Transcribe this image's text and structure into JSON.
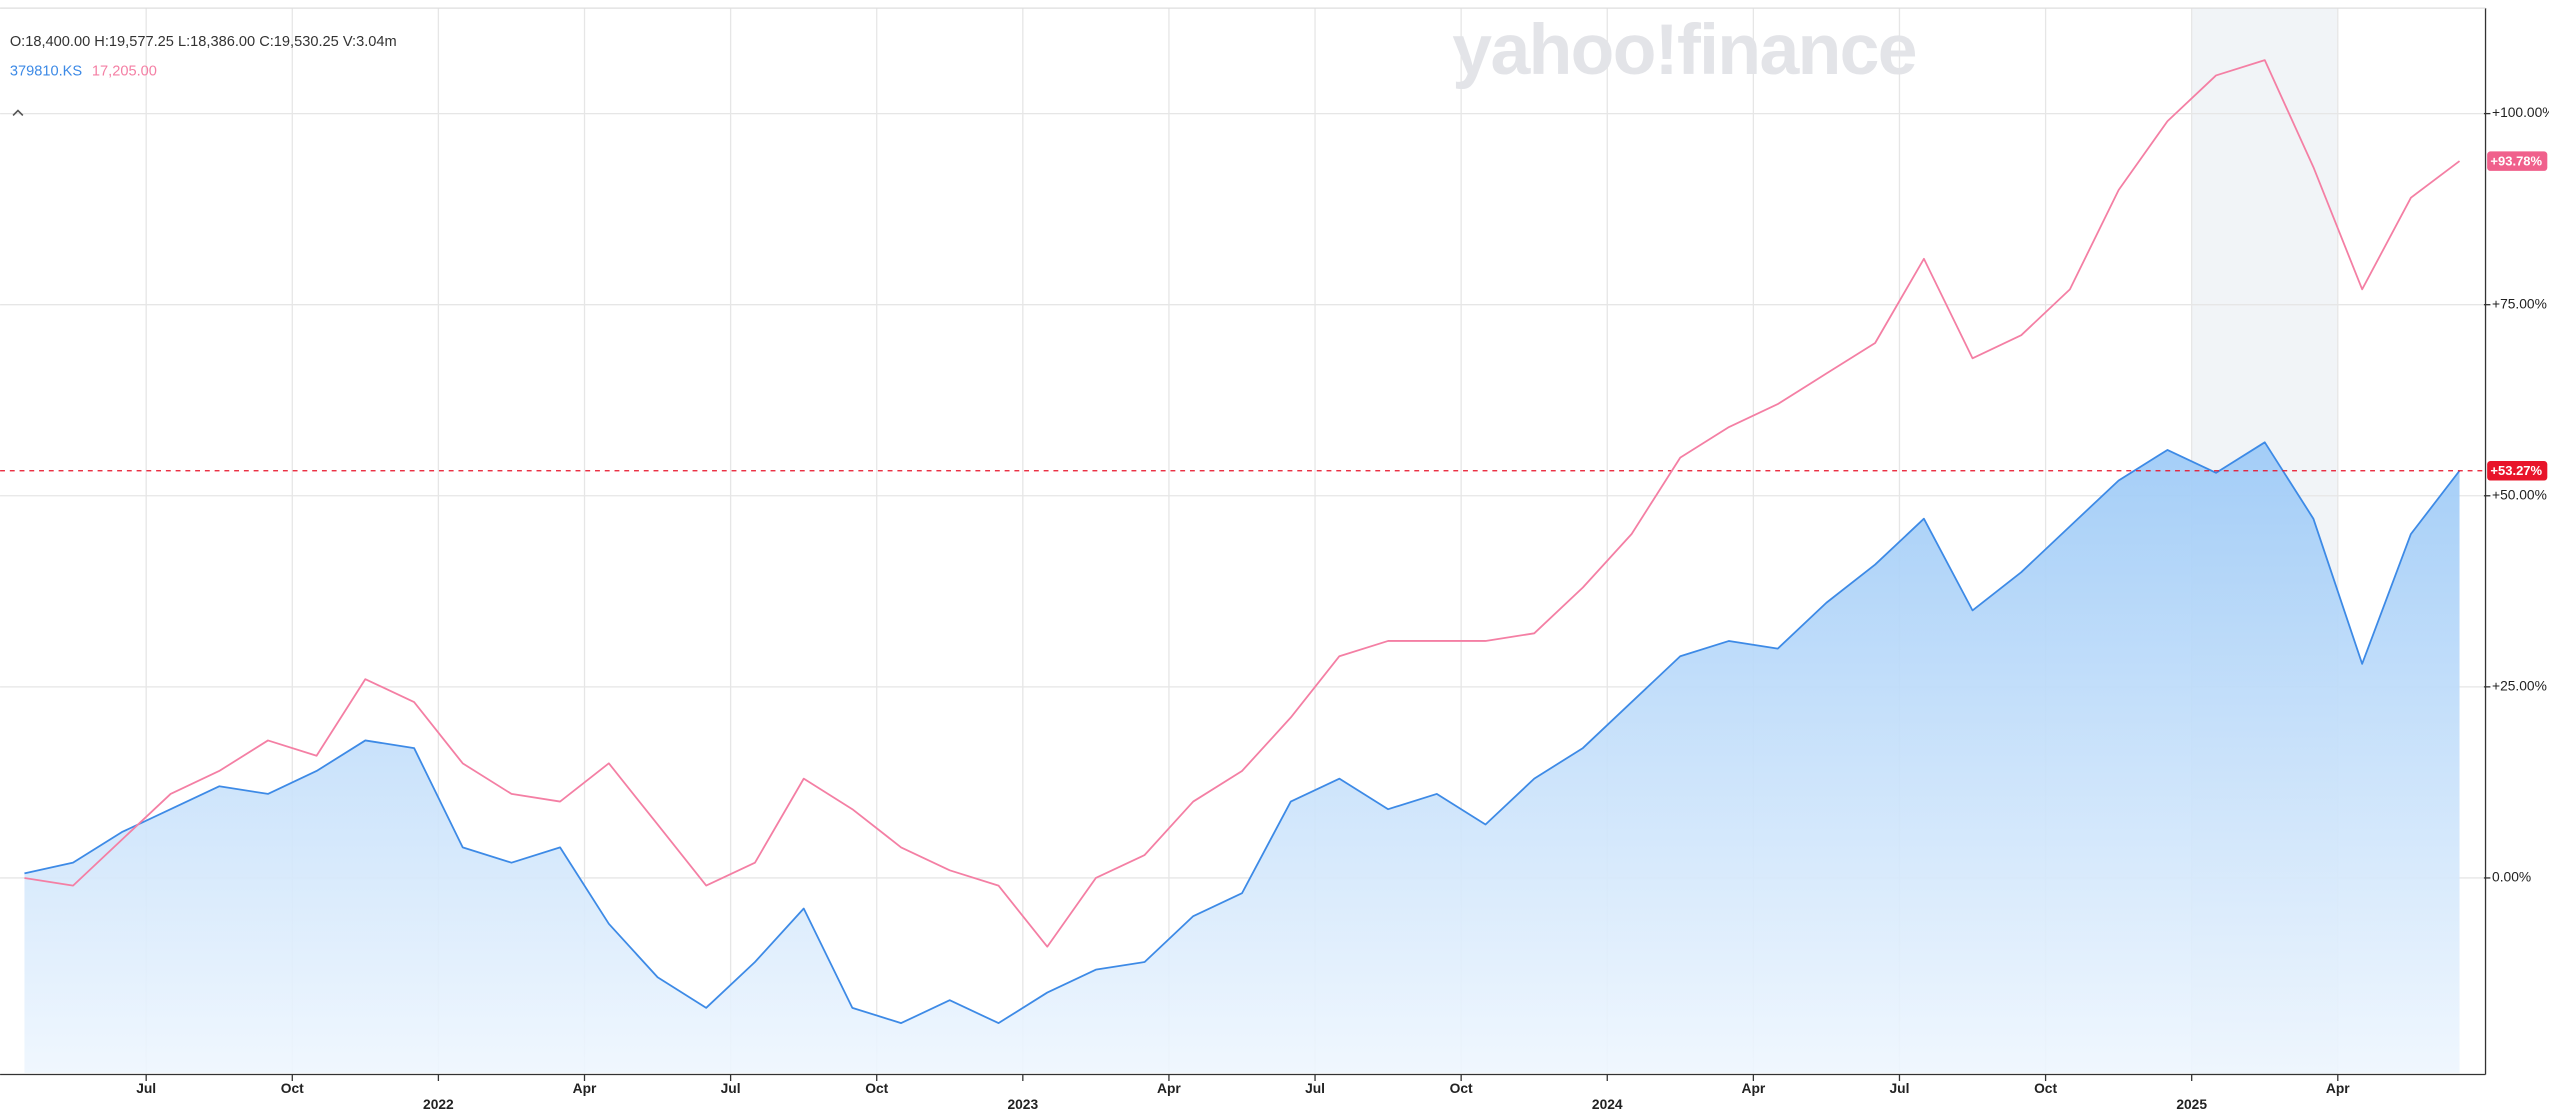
{
  "chart_data": {
    "type": "line",
    "ohlc": "O:18,400.00 H:19,577.25 L:18,386.00 C:19,530.25 V:3.04m",
    "watermark": "yahoo!finance",
    "x": [
      "2021-04",
      "2021-05",
      "2021-06",
      "2021-07",
      "2021-08",
      "2021-09",
      "2021-10",
      "2021-11",
      "2021-12",
      "2022-01",
      "2022-02",
      "2022-03",
      "2022-04",
      "2022-05",
      "2022-06",
      "2022-07",
      "2022-08",
      "2022-09",
      "2022-10",
      "2022-11",
      "2022-12",
      "2023-01",
      "2023-02",
      "2023-03",
      "2023-04",
      "2023-05",
      "2023-06",
      "2023-07",
      "2023-08",
      "2023-09",
      "2023-10",
      "2023-11",
      "2023-12",
      "2024-01",
      "2024-02",
      "2024-03",
      "2024-04",
      "2024-05",
      "2024-06",
      "2024-07",
      "2024-08",
      "2024-09",
      "2024-10",
      "2024-11",
      "2024-12",
      "2025-01",
      "2025-02",
      "2025-03",
      "2025-04",
      "2025-05",
      "2025-06"
    ],
    "series": [
      {
        "name": "379810.KS",
        "color": "#3d8ae6",
        "area": true,
        "last_label": "+53.27%",
        "values": [
          0.6,
          2,
          6,
          9,
          12,
          11,
          14,
          18,
          17,
          4,
          2,
          4,
          -6,
          -13,
          -17,
          -11,
          -4,
          -17,
          -19,
          -16,
          -19,
          -15,
          -12,
          -11,
          -5,
          -2,
          10,
          13,
          9,
          11,
          7,
          13,
          17,
          23,
          29,
          31,
          30,
          36,
          41,
          47,
          35,
          40,
          46,
          52,
          56,
          53,
          57,
          47,
          28,
          45,
          53.27
        ]
      },
      {
        "name": "17,205.00",
        "color": "#f47fa4",
        "area": false,
        "last_label": "+93.78%",
        "values": [
          0,
          -1,
          5,
          11,
          14,
          18,
          16,
          26,
          23,
          15,
          11,
          10,
          15,
          7,
          -1,
          2,
          13,
          9,
          4,
          1,
          -1,
          -9,
          0,
          3,
          10,
          14,
          21,
          29,
          31,
          31,
          31,
          32,
          38,
          45,
          55,
          59,
          62,
          66,
          70,
          81,
          68,
          71,
          77,
          90,
          99,
          105,
          107,
          93,
          77,
          89,
          93.78
        ]
      }
    ],
    "xlim": [
      "2021-04",
      "2025-07"
    ],
    "xticks": [
      {
        "value": "2021-07",
        "label": "Jul"
      },
      {
        "value": "2021-10",
        "label": "Oct"
      },
      {
        "value": "2022-01",
        "label": "2022"
      },
      {
        "value": "2022-04",
        "label": "Apr"
      },
      {
        "value": "2022-07",
        "label": "Jul"
      },
      {
        "value": "2022-10",
        "label": "Oct"
      },
      {
        "value": "2023-01",
        "label": "2023"
      },
      {
        "value": "2023-04",
        "label": "Apr"
      },
      {
        "value": "2023-07",
        "label": "Jul"
      },
      {
        "value": "2023-10",
        "label": "Oct"
      },
      {
        "value": "2024-01",
        "label": "2024"
      },
      {
        "value": "2024-04",
        "label": "Apr"
      },
      {
        "value": "2024-07",
        "label": "Jul"
      },
      {
        "value": "2024-10",
        "label": "Oct"
      },
      {
        "value": "2025-01",
        "label": "2025"
      },
      {
        "value": "2025-04",
        "label": "Apr"
      }
    ],
    "ylim": [
      -25.5,
      113.8
    ],
    "yticks": [
      {
        "value": 0,
        "label": "0.00%"
      },
      {
        "value": 25,
        "label": "+25.00%"
      },
      {
        "value": 50,
        "label": "+50.00%"
      },
      {
        "value": 75,
        "label": "+75.00%"
      },
      {
        "value": 100,
        "label": "+100.00%"
      }
    ],
    "grid": true,
    "highlight": [
      "2025-01",
      "2025-04"
    ]
  }
}
